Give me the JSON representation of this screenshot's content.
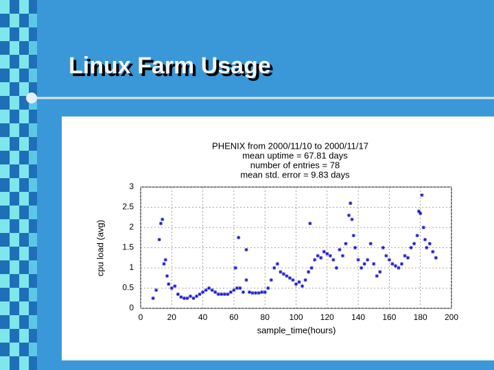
{
  "slide": {
    "title": "Linux Farm Usage"
  },
  "chart_data": {
    "type": "scatter",
    "title": "PHENIX from 2000/11/10 to 2000/11/17",
    "annotations": [
      "mean uptime = 67.81 days",
      "number of entries =  78",
      "mean std. error =   9.83 days"
    ],
    "x_label": "sample_time(hours)",
    "y_label": "cpu load (avg)",
    "xlim": [
      0,
      200
    ],
    "ylim": [
      0,
      3
    ],
    "xticks": [
      0,
      20,
      40,
      60,
      80,
      100,
      120,
      140,
      160,
      180,
      200
    ],
    "yticks": [
      0,
      0.5,
      1,
      1.5,
      2,
      2.5,
      3
    ],
    "grid": true,
    "series": [
      {
        "color": "#1a1ac8",
        "x": [
          8,
          10,
          12,
          13,
          14,
          15,
          16,
          17,
          18,
          20,
          22,
          24,
          26,
          28,
          30,
          32,
          34,
          36,
          38,
          40,
          42,
          44,
          46,
          48,
          50,
          52,
          54,
          56,
          58,
          60,
          61,
          62,
          63,
          64,
          66,
          68,
          68,
          70,
          72,
          74,
          76,
          78,
          80,
          82,
          84,
          86,
          88,
          90,
          92,
          94,
          96,
          98,
          100,
          102,
          104,
          106,
          108,
          109,
          110,
          112,
          114,
          116,
          118,
          120,
          122,
          124,
          126,
          128,
          130,
          132,
          134,
          135,
          136,
          137,
          138,
          140,
          142,
          144,
          146,
          148,
          150,
          152,
          154,
          156,
          158,
          160,
          162,
          164,
          166,
          168,
          170,
          172,
          174,
          176,
          178,
          179,
          180,
          181,
          182,
          183,
          184,
          186,
          188,
          190
        ],
        "values": [
          0.25,
          0.45,
          1.7,
          2.1,
          2.2,
          1.1,
          1.2,
          0.8,
          0.6,
          0.5,
          0.55,
          0.35,
          0.28,
          0.25,
          0.25,
          0.3,
          0.25,
          0.3,
          0.35,
          0.4,
          0.45,
          0.5,
          0.45,
          0.4,
          0.35,
          0.35,
          0.35,
          0.35,
          0.4,
          0.45,
          1.0,
          0.5,
          1.75,
          0.5,
          0.4,
          0.7,
          1.45,
          0.4,
          0.38,
          0.38,
          0.38,
          0.4,
          0.4,
          0.5,
          0.7,
          1.0,
          1.1,
          0.9,
          0.85,
          0.8,
          0.75,
          0.7,
          0.6,
          0.65,
          0.55,
          0.7,
          0.9,
          2.1,
          1.0,
          1.2,
          1.3,
          1.25,
          1.4,
          1.35,
          1.3,
          1.2,
          1.0,
          1.45,
          1.3,
          1.6,
          2.3,
          2.6,
          2.2,
          1.8,
          1.5,
          1.2,
          1.0,
          1.1,
          1.2,
          1.6,
          1.1,
          0.8,
          0.9,
          1.5,
          1.3,
          1.2,
          1.1,
          1.05,
          1.0,
          1.1,
          1.3,
          1.25,
          1.5,
          1.6,
          1.8,
          2.4,
          2.35,
          2.8,
          2.0,
          1.7,
          1.5,
          1.6,
          1.4,
          1.25
        ]
      }
    ]
  }
}
